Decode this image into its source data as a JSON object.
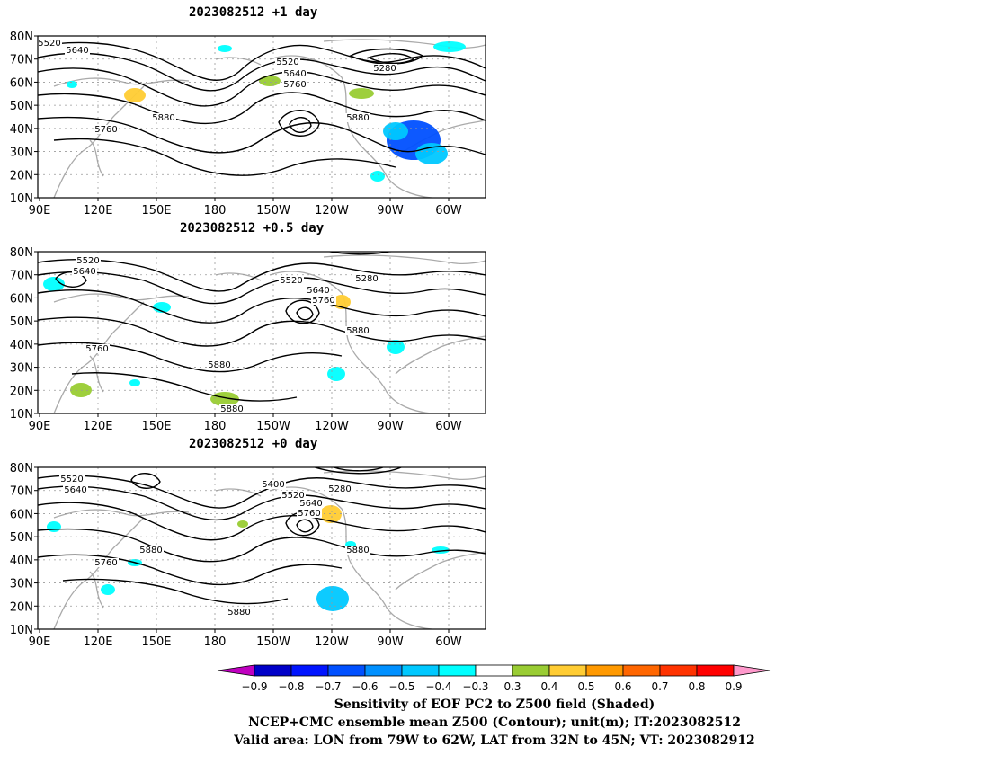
{
  "panels": [
    {
      "title": "2023082512  +1 day",
      "contour_labels": [
        "5520",
        "5640",
        "5520",
        "5640",
        "5760",
        "5280",
        "5760",
        "5880",
        "5880"
      ]
    },
    {
      "title": "2023082512  +0.5 day",
      "contour_labels": [
        "5520",
        "5640",
        "5520",
        "5640",
        "5760",
        "5280",
        "5760",
        "5880",
        "5880",
        "5880"
      ]
    },
    {
      "title": "2023082512  +0 day",
      "contour_labels": [
        "5520",
        "5640",
        "5400",
        "5520",
        "5640",
        "5760",
        "5280",
        "5880",
        "5760",
        "5880",
        "5880"
      ]
    }
  ],
  "lat_labels": [
    "80N",
    "70N",
    "60N",
    "50N",
    "40N",
    "30N",
    "20N",
    "10N"
  ],
  "lon_labels": [
    "90E",
    "120E",
    "150E",
    "180",
    "150W",
    "120W",
    "90W",
    "60W"
  ],
  "colorbar": {
    "tick_labels": [
      "-0.9",
      "-0.8",
      "-0.7",
      "-0.6",
      "-0.5",
      "-0.4",
      "-0.3",
      "0.3",
      "0.4",
      "0.5",
      "0.6",
      "0.7",
      "0.8",
      "0.9"
    ],
    "colors": [
      "#c000c0",
      "#0000c8",
      "#0014ff",
      "#0050ff",
      "#0090ff",
      "#00c8ff",
      "#00ffff",
      "#ffffff",
      "#99cc33",
      "#ffcc33",
      "#ff9900",
      "#ff6600",
      "#ff3300",
      "#ff0000",
      "#ff99cc"
    ]
  },
  "caption": {
    "line1": "Sensitivity of EOF PC2 to Z500 field (Shaded)",
    "line2": "NCEP+CMC ensemble mean Z500 (Contour); unit(m); IT:2023082512",
    "line3": "Valid area: LON from 79W to 62W, LAT from 32N to 45N; VT: 2023082912"
  }
}
